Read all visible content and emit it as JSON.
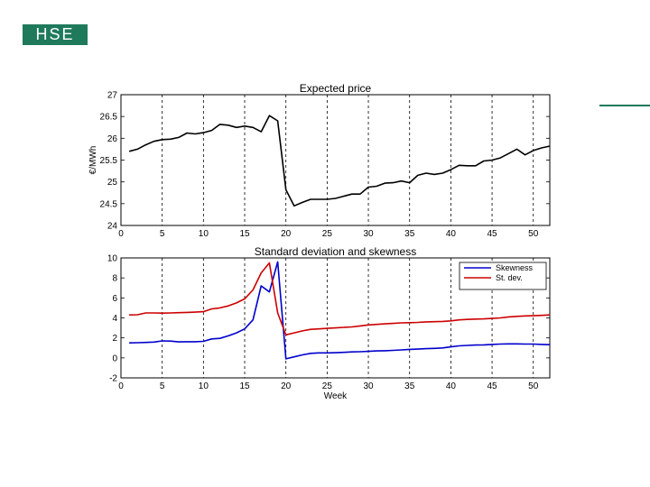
{
  "logo": {
    "text": "HSE",
    "color": "#1f7a5c"
  },
  "chart_data": [
    {
      "type": "line",
      "title": "Expected price",
      "xlabel": "",
      "ylabel": "€/MWh",
      "xlim": [
        0,
        52
      ],
      "ylim": [
        24,
        27
      ],
      "xticks": [
        0,
        5,
        10,
        15,
        20,
        25,
        30,
        35,
        40,
        45,
        50
      ],
      "yticks": [
        24,
        24.5,
        25,
        25.5,
        26,
        26.5,
        27
      ],
      "grid": "x-dashed",
      "series": [
        {
          "color": "#000000",
          "x": [
            1,
            2,
            3,
            4,
            5,
            6,
            7,
            8,
            9,
            10,
            11,
            12,
            13,
            14,
            15,
            16,
            17,
            18,
            19,
            20,
            21,
            22,
            23,
            24,
            25,
            26,
            27,
            28,
            29,
            30,
            31,
            32,
            33,
            34,
            35,
            36,
            37,
            38,
            39,
            40,
            41,
            42,
            43,
            44,
            45,
            46,
            47,
            48,
            49,
            50,
            51,
            52
          ],
          "y": [
            25.7,
            25.75,
            25.85,
            25.93,
            25.97,
            25.98,
            26.02,
            26.12,
            26.1,
            26.13,
            26.18,
            26.32,
            26.3,
            26.25,
            26.28,
            26.25,
            26.15,
            26.52,
            26.4,
            24.82,
            24.45,
            24.53,
            24.6,
            24.6,
            24.6,
            24.62,
            24.67,
            24.72,
            24.72,
            24.88,
            24.9,
            24.97,
            24.98,
            25.02,
            24.98,
            25.15,
            25.2,
            25.17,
            25.2,
            25.28,
            25.38,
            25.37,
            25.37,
            25.48,
            25.5,
            25.55,
            25.65,
            25.75,
            25.62,
            25.72,
            25.78,
            25.82
          ]
        }
      ]
    },
    {
      "type": "line",
      "title": "Standard deviation and skewness",
      "xlabel": "Week",
      "ylabel": "",
      "xlim": [
        0,
        52
      ],
      "ylim": [
        -2,
        10
      ],
      "xticks": [
        0,
        5,
        10,
        15,
        20,
        25,
        30,
        35,
        40,
        45,
        50
      ],
      "yticks": [
        -2,
        0,
        2,
        4,
        6,
        8,
        10
      ],
      "grid": "x-dashed",
      "legend": "top-right",
      "series": [
        {
          "name": "Skewness",
          "color": "#0000cc",
          "x": [
            1,
            2,
            3,
            4,
            5,
            6,
            7,
            8,
            9,
            10,
            11,
            12,
            13,
            14,
            15,
            16,
            17,
            18,
            19,
            20,
            21,
            22,
            23,
            24,
            25,
            26,
            27,
            28,
            29,
            30,
            31,
            32,
            33,
            34,
            35,
            36,
            37,
            38,
            39,
            40,
            41,
            42,
            43,
            44,
            45,
            46,
            47,
            48,
            49,
            50,
            51,
            52
          ],
          "y": [
            1.5,
            1.52,
            1.55,
            1.58,
            1.7,
            1.68,
            1.6,
            1.62,
            1.62,
            1.65,
            1.9,
            1.95,
            2.2,
            2.5,
            2.9,
            3.8,
            7.2,
            6.6,
            9.6,
            -0.1,
            0.1,
            0.3,
            0.45,
            0.5,
            0.5,
            0.52,
            0.55,
            0.6,
            0.62,
            0.65,
            0.7,
            0.72,
            0.75,
            0.8,
            0.85,
            0.88,
            0.92,
            0.95,
            1.0,
            1.1,
            1.2,
            1.25,
            1.28,
            1.3,
            1.35,
            1.38,
            1.4,
            1.4,
            1.38,
            1.38,
            1.35,
            1.32
          ]
        },
        {
          "name": "St. dev.",
          "color": "#cc0000",
          "x": [
            1,
            2,
            3,
            4,
            5,
            6,
            7,
            8,
            9,
            10,
            11,
            12,
            13,
            14,
            15,
            16,
            17,
            18,
            19,
            20,
            21,
            22,
            23,
            24,
            25,
            26,
            27,
            28,
            29,
            30,
            31,
            32,
            33,
            34,
            35,
            36,
            37,
            38,
            39,
            40,
            41,
            42,
            43,
            44,
            45,
            46,
            47,
            48,
            49,
            50,
            51,
            52
          ],
          "y": [
            4.3,
            4.32,
            4.5,
            4.5,
            4.48,
            4.5,
            4.52,
            4.55,
            4.58,
            4.62,
            4.9,
            5.0,
            5.2,
            5.5,
            5.9,
            6.8,
            8.5,
            9.5,
            4.5,
            2.3,
            2.5,
            2.7,
            2.85,
            2.9,
            2.95,
            3.0,
            3.05,
            3.1,
            3.2,
            3.3,
            3.35,
            3.4,
            3.45,
            3.5,
            3.52,
            3.55,
            3.6,
            3.62,
            3.65,
            3.7,
            3.8,
            3.85,
            3.88,
            3.9,
            3.95,
            4.0,
            4.1,
            4.15,
            4.2,
            4.22,
            4.25,
            4.3
          ]
        }
      ]
    }
  ]
}
